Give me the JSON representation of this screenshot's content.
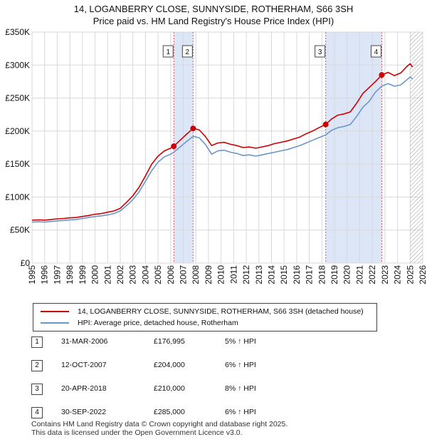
{
  "title": {
    "line1": "14, LOGANBERRY CLOSE, SUNNYSIDE, ROTHERHAM, S66 3SH",
    "line2": "Price paid vs. HM Land Registry's House Price Index (HPI)"
  },
  "chart_data": {
    "type": "line",
    "xlim": [
      1995,
      2026
    ],
    "ylim": [
      0,
      350000
    ],
    "yticks": [
      {
        "value": 0,
        "label": "£0"
      },
      {
        "value": 50000,
        "label": "£50K"
      },
      {
        "value": 100000,
        "label": "£100K"
      },
      {
        "value": 150000,
        "label": "£150K"
      },
      {
        "value": 200000,
        "label": "£200K"
      },
      {
        "value": 250000,
        "label": "£250K"
      },
      {
        "value": 300000,
        "label": "£300K"
      },
      {
        "value": 350000,
        "label": "£350K"
      }
    ],
    "xticks": [
      "1995",
      "1996",
      "1997",
      "1998",
      "1999",
      "2000",
      "2001",
      "2002",
      "2003",
      "2004",
      "2005",
      "2006",
      "2007",
      "2008",
      "2009",
      "2010",
      "2011",
      "2012",
      "2013",
      "2014",
      "2015",
      "2016",
      "2017",
      "2018",
      "2019",
      "2020",
      "2021",
      "2022",
      "2023",
      "2024",
      "2025",
      "2026"
    ],
    "grid": true,
    "colors": {
      "property": "#cc0000",
      "hpi": "#6a96cc",
      "shade": "#dde6f6",
      "grid": "#d8d8d8"
    },
    "series": [
      {
        "name": "14, LOGANBERRY CLOSE, SUNNYSIDE, ROTHERHAM, S66 3SH (detached house)",
        "points": [
          [
            1995.0,
            65000
          ],
          [
            1995.5,
            65500
          ],
          [
            1996.0,
            65000
          ],
          [
            1996.5,
            66000
          ],
          [
            1997.0,
            67000
          ],
          [
            1997.5,
            67500
          ],
          [
            1998.0,
            68500
          ],
          [
            1998.5,
            69000
          ],
          [
            1999.0,
            70500
          ],
          [
            1999.5,
            72000
          ],
          [
            2000.0,
            74000
          ],
          [
            2000.5,
            75000
          ],
          [
            2001.0,
            77000
          ],
          [
            2001.5,
            79000
          ],
          [
            2002.0,
            83000
          ],
          [
            2002.5,
            92000
          ],
          [
            2003.0,
            102000
          ],
          [
            2003.5,
            115000
          ],
          [
            2004.0,
            132000
          ],
          [
            2004.5,
            150000
          ],
          [
            2005.0,
            162000
          ],
          [
            2005.5,
            170000
          ],
          [
            2006.0,
            174000
          ],
          [
            2006.25,
            176995
          ],
          [
            2006.75,
            186000
          ],
          [
            2007.25,
            195000
          ],
          [
            2007.78,
            204000
          ],
          [
            2008.25,
            202000
          ],
          [
            2008.75,
            192000
          ],
          [
            2009.25,
            178000
          ],
          [
            2009.75,
            182000
          ],
          [
            2010.25,
            183000
          ],
          [
            2010.75,
            180000
          ],
          [
            2011.25,
            178000
          ],
          [
            2011.75,
            175000
          ],
          [
            2012.25,
            176000
          ],
          [
            2012.75,
            174000
          ],
          [
            2013.25,
            176000
          ],
          [
            2013.75,
            178000
          ],
          [
            2014.25,
            181000
          ],
          [
            2014.75,
            183000
          ],
          [
            2015.25,
            185000
          ],
          [
            2015.75,
            188000
          ],
          [
            2016.25,
            191000
          ],
          [
            2016.75,
            196000
          ],
          [
            2017.25,
            200000
          ],
          [
            2017.75,
            205000
          ],
          [
            2018.3,
            210000
          ],
          [
            2018.75,
            218000
          ],
          [
            2019.25,
            224000
          ],
          [
            2019.75,
            226000
          ],
          [
            2020.25,
            229000
          ],
          [
            2020.75,
            242000
          ],
          [
            2021.25,
            257000
          ],
          [
            2021.75,
            266000
          ],
          [
            2022.25,
            275000
          ],
          [
            2022.75,
            285000
          ],
          [
            2023.25,
            289000
          ],
          [
            2023.75,
            284000
          ],
          [
            2024.25,
            288000
          ],
          [
            2024.75,
            298000
          ],
          [
            2025.0,
            302000
          ],
          [
            2025.2,
            297000
          ]
        ]
      },
      {
        "name": "HPI: Average price, detached house, Rotherham",
        "points": [
          [
            1995.0,
            62000
          ],
          [
            1995.5,
            62500
          ],
          [
            1996.0,
            62000
          ],
          [
            1996.5,
            63000
          ],
          [
            1997.0,
            64000
          ],
          [
            1997.5,
            64500
          ],
          [
            1998.0,
            65500
          ],
          [
            1998.5,
            66000
          ],
          [
            1999.0,
            67500
          ],
          [
            1999.5,
            69000
          ],
          [
            2000.0,
            70500
          ],
          [
            2000.5,
            71500
          ],
          [
            2001.0,
            73000
          ],
          [
            2001.5,
            75000
          ],
          [
            2002.0,
            79000
          ],
          [
            2002.5,
            87000
          ],
          [
            2003.0,
            96000
          ],
          [
            2003.5,
            108000
          ],
          [
            2004.0,
            124000
          ],
          [
            2004.5,
            140000
          ],
          [
            2005.0,
            153000
          ],
          [
            2005.5,
            161000
          ],
          [
            2006.0,
            165000
          ],
          [
            2006.25,
            168000
          ],
          [
            2006.75,
            176000
          ],
          [
            2007.25,
            184000
          ],
          [
            2007.78,
            192000
          ],
          [
            2008.25,
            190000
          ],
          [
            2008.75,
            180000
          ],
          [
            2009.25,
            165000
          ],
          [
            2009.75,
            170000
          ],
          [
            2010.25,
            171000
          ],
          [
            2010.75,
            168000
          ],
          [
            2011.25,
            166000
          ],
          [
            2011.75,
            163000
          ],
          [
            2012.25,
            164000
          ],
          [
            2012.75,
            162000
          ],
          [
            2013.25,
            164000
          ],
          [
            2013.75,
            166000
          ],
          [
            2014.25,
            168000
          ],
          [
            2014.75,
            170000
          ],
          [
            2015.25,
            172000
          ],
          [
            2015.75,
            175000
          ],
          [
            2016.25,
            178000
          ],
          [
            2016.75,
            182000
          ],
          [
            2017.25,
            186000
          ],
          [
            2017.75,
            190000
          ],
          [
            2018.3,
            194000
          ],
          [
            2018.75,
            201000
          ],
          [
            2019.25,
            205000
          ],
          [
            2019.75,
            207000
          ],
          [
            2020.25,
            210000
          ],
          [
            2020.75,
            222000
          ],
          [
            2021.25,
            236000
          ],
          [
            2021.75,
            245000
          ],
          [
            2022.25,
            259000
          ],
          [
            2022.75,
            268000
          ],
          [
            2023.25,
            272000
          ],
          [
            2023.75,
            268000
          ],
          [
            2024.25,
            270000
          ],
          [
            2024.75,
            278000
          ],
          [
            2025.0,
            282000
          ],
          [
            2025.2,
            279000
          ]
        ]
      }
    ],
    "sales": [
      {
        "id": "1",
        "x": 2006.25,
        "price": 176995
      },
      {
        "id": "2",
        "x": 2007.78,
        "price": 204000
      },
      {
        "id": "3",
        "x": 2018.3,
        "price": 210000
      },
      {
        "id": "4",
        "x": 2022.75,
        "price": 285000
      }
    ],
    "shaded_ranges": [
      [
        2006.25,
        2007.78
      ],
      [
        2018.3,
        2022.75
      ]
    ],
    "future_from": 2025.0
  },
  "legend": {
    "property": "14, LOGANBERRY CLOSE, SUNNYSIDE, ROTHERHAM, S66 3SH (detached house)",
    "hpi": "HPI: Average price, detached house, Rotherham"
  },
  "sales_table": [
    {
      "num": "1",
      "date": "31-MAR-2006",
      "price": "£176,995",
      "hpi": "5% ↑ HPI"
    },
    {
      "num": "2",
      "date": "12-OCT-2007",
      "price": "£204,000",
      "hpi": "6% ↑ HPI"
    },
    {
      "num": "3",
      "date": "20-APR-2018",
      "price": "£210,000",
      "hpi": "8% ↑ HPI"
    },
    {
      "num": "4",
      "date": "30-SEP-2022",
      "price": "£285,000",
      "hpi": "6% ↑ HPI"
    }
  ],
  "footer": {
    "line1": "Contains HM Land Registry data © Crown copyright and database right 2025.",
    "line2": "This data is licensed under the Open Government Licence v3.0."
  }
}
